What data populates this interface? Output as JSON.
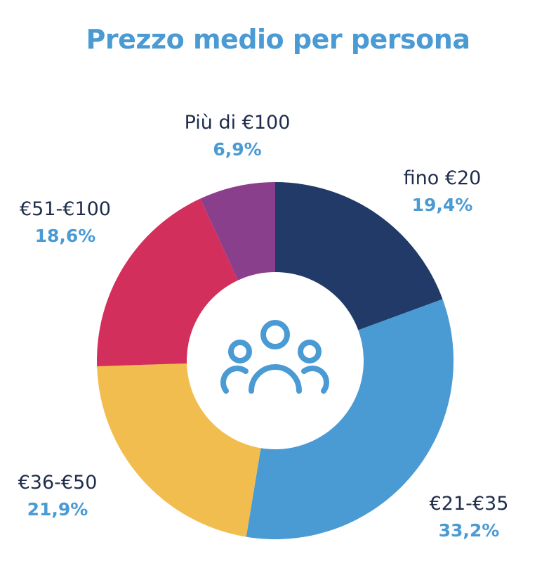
{
  "colors": {
    "title": "#4a9ad4",
    "value_text": "#4a9ad4",
    "label_text": "#1f2d4a",
    "icon": "#4a9ad4"
  },
  "center_icon": "group-of-people-icon",
  "chart_data": {
    "type": "pie",
    "variant": "donut",
    "title": "Prezzo medio per persona",
    "start": "12 o'clock",
    "direction": "clockwise",
    "slices": [
      {
        "label": "fino €20",
        "value": 19.4,
        "display": "19,4%",
        "color": "#223a68"
      },
      {
        "label": "€21-€35",
        "value": 33.2,
        "display": "33,2%",
        "color": "#4a9ad4"
      },
      {
        "label": "€36-€50",
        "value": 21.9,
        "display": "21,9%",
        "color": "#f2bd4f"
      },
      {
        "label": "€51-€100",
        "value": 18.6,
        "display": "18,6%",
        "color": "#d22f5c"
      },
      {
        "label": "Più di €100",
        "value": 6.9,
        "display": "6,9%",
        "color": "#8a3f8c"
      }
    ]
  }
}
